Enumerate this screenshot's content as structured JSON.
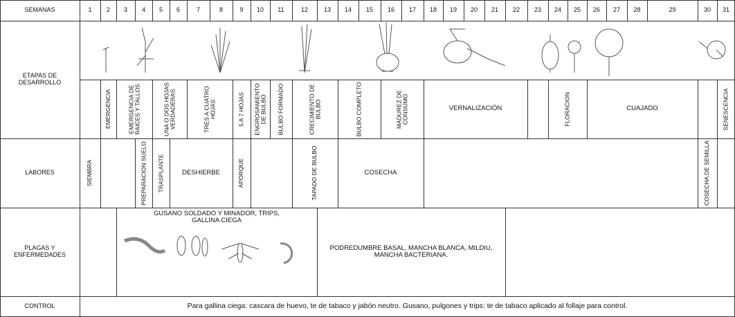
{
  "header": {
    "label": "SEMANAS",
    "weeks": [
      1,
      2,
      3,
      4,
      5,
      6,
      7,
      8,
      9,
      10,
      11,
      12,
      13,
      14,
      15,
      16,
      17,
      18,
      19,
      20,
      21,
      22,
      23,
      24,
      25,
      26,
      27,
      28,
      29,
      30,
      31
    ]
  },
  "stages": {
    "label": "ETAPAS DE DESARROLLO",
    "cells": [
      "EMERGENCIA",
      "EMERGENCIA DE RAICES Y TALLOS",
      "UNA O DOS HOJAS VERDADERAS",
      "TRES A CUATRO HOJAS",
      "5 A 7 HOJAS",
      "ENGROSAMIENTO DE BULBO",
      "BULBO FORMADO",
      "CRECIMIENTO DE BULBO",
      "BULBO COMPLETO",
      "MADUREZ DE CONSUMO",
      "VERNALIZACIÓN",
      "FLORACION",
      "CUAJADO",
      "SENESCENCIA"
    ]
  },
  "labores": {
    "label": "LABORES",
    "cells": [
      "SIEMBRA",
      "PREPARACION SUELO",
      "TRASPLANTE",
      "DESHIERBE",
      "APORQUE",
      "TAPADO DE BULBO",
      "COSECHA",
      "COSECHA DE SEMILLA"
    ]
  },
  "plagas": {
    "label": "PLAGAS Y ENFERMEDADES",
    "cells": [
      "GUSANO SOLDADO Y MINADOR, TRIPS, GALLINA CIEGA",
      "PODREDUMBRE BASAL, MANCHA BLANCA, MILDIU, MANCHA BACTERIANA."
    ]
  },
  "control": {
    "label": "CONTROL",
    "text": "Para gallina ciega: cascara de huevo, te de tabaco y jabón neutro. Gusano, pulgones y trips: te de tabaco aplicado al follaje para control."
  }
}
